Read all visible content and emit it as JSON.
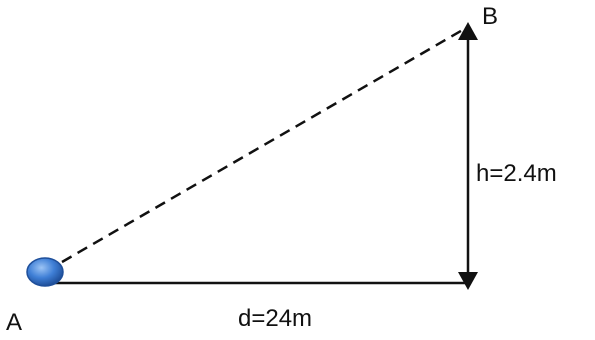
{
  "points": {
    "a_label": "A",
    "b_label": "B"
  },
  "dimensions": {
    "height_label": "h=2.4m",
    "distance_label": "d=24m"
  },
  "colors": {
    "line": "#111111",
    "ball_fill": "#3f7fd6",
    "ball_stroke": "#1f4f9a"
  }
}
